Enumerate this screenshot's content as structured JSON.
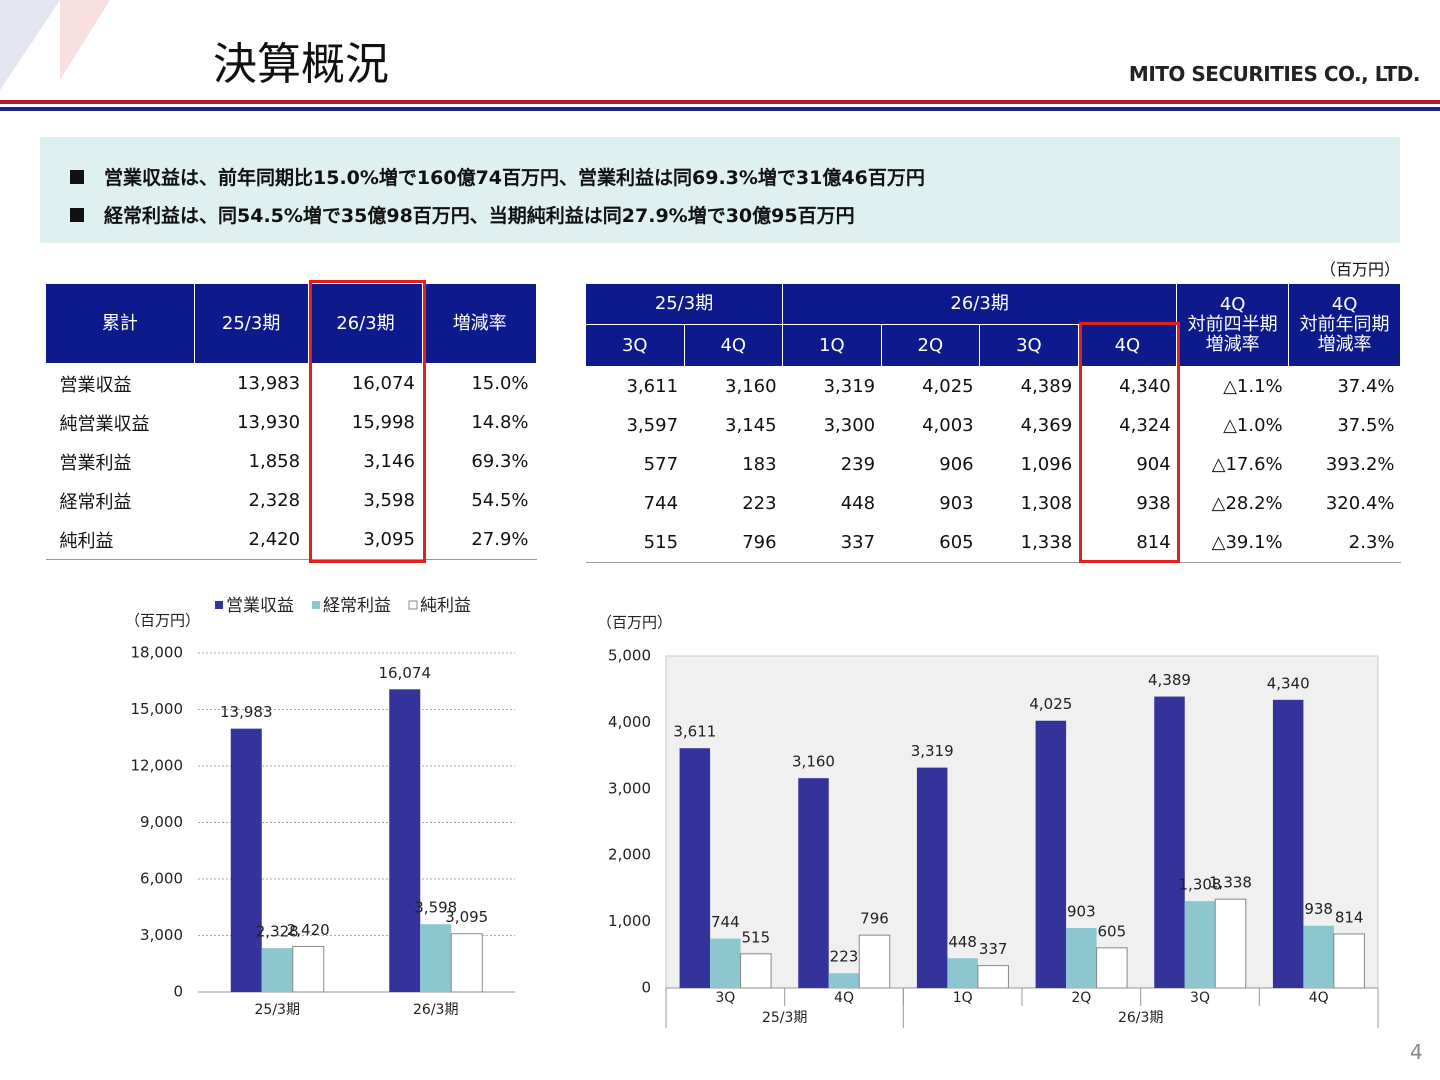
{
  "header": {
    "title": "決算概況",
    "company": "MITO SECURITIES CO., LTD."
  },
  "summary": [
    "営業収益は、前年同期比15.0%増で160億74百万円、営業利益は同69.3%増で31億46百万円",
    "経常利益は、同54.5%増で35億98百万円、当期純利益は同27.9%増で30億95百万円"
  ],
  "unit": "（百万円）",
  "table1": {
    "header": [
      "累計",
      "25/3期",
      "26/3期",
      "増減率"
    ],
    "rows": [
      [
        "営業収益",
        "13,983",
        "16,074",
        "15.0%"
      ],
      [
        "純営業収益",
        "13,930",
        "15,998",
        "14.8%"
      ],
      [
        "営業利益",
        "1,858",
        "3,146",
        "69.3%"
      ],
      [
        "経常利益",
        "2,328",
        "3,598",
        "54.5%"
      ],
      [
        "純利益",
        "2,420",
        "3,095",
        "27.9%"
      ]
    ]
  },
  "table2": {
    "header_top": [
      "25/3期",
      "26/3期",
      "4Q\n対前四半期\n増減率",
      "4Q\n対前年同期\n増減率"
    ],
    "header_sub": [
      "3Q",
      "4Q",
      "1Q",
      "2Q",
      "3Q",
      "4Q"
    ],
    "rows": [
      [
        "3,611",
        "3,160",
        "3,319",
        "4,025",
        "4,389",
        "4,340",
        "△1.1%",
        "37.4%"
      ],
      [
        "3,597",
        "3,145",
        "3,300",
        "4,003",
        "4,369",
        "4,324",
        "△1.0%",
        "37.5%"
      ],
      [
        "577",
        "183",
        "239",
        "906",
        "1,096",
        "904",
        "△17.6%",
        "393.2%"
      ],
      [
        "744",
        "223",
        "448",
        "903",
        "1,308",
        "938",
        "△28.2%",
        "320.4%"
      ],
      [
        "515",
        "796",
        "337",
        "605",
        "1,338",
        "814",
        "△39.1%",
        "2.3%"
      ]
    ]
  },
  "chart_data": [
    {
      "type": "bar",
      "y_label": "（百万円）",
      "categories": [
        "25/3期",
        "26/3期"
      ],
      "legend": "top",
      "grid": true,
      "series": [
        {
          "name": "営業収益",
          "color": "#333399",
          "values": [
            13983,
            16074
          ],
          "value_labels": [
            "13,983",
            "16,074"
          ]
        },
        {
          "name": "経常利益",
          "color": "#8cc6cf",
          "values": [
            2328,
            3598
          ],
          "value_labels": [
            "2,328",
            "3,598"
          ]
        },
        {
          "name": "純利益",
          "color": "#ffffff",
          "values": [
            2420,
            3095
          ],
          "value_labels": [
            "2,420",
            "3,095"
          ]
        }
      ],
      "ylim": [
        0,
        18000
      ],
      "yticks": [
        0,
        {
          "value": 3000,
          "label": "3,000"
        },
        {
          "value": 6000,
          "label": "6,000"
        },
        {
          "value": 9000,
          "label": "9,000"
        },
        {
          "value": 12000,
          "label": "12,000"
        },
        {
          "value": 15000,
          "label": "15,000"
        },
        {
          "value": 18000,
          "label": "18,000"
        }
      ]
    },
    {
      "type": "bar",
      "y_label": "（百万円）",
      "categories": [
        "3Q",
        "4Q",
        "1Q",
        "2Q",
        "3Q",
        "4Q"
      ],
      "category_groups": [
        {
          "label": "25/3期",
          "count": 2
        },
        {
          "label": "26/3期",
          "count": 4
        }
      ],
      "grid": false,
      "series": [
        {
          "color": "#333399",
          "values": [
            3611,
            3160,
            3319,
            4025,
            4389,
            4340
          ],
          "value_labels": [
            "3,611",
            "3,160",
            "3,319",
            "4,025",
            "4,389",
            "4,340"
          ]
        },
        {
          "color": "#8cc6cf",
          "values": [
            744,
            223,
            448,
            903,
            1308,
            938
          ],
          "value_labels": [
            "744",
            "223",
            "448",
            "903",
            "1,308",
            "938"
          ]
        },
        {
          "color": "#ffffff",
          "values": [
            515,
            796,
            337,
            605,
            1338,
            814
          ],
          "value_labels": [
            "515",
            "796",
            "337",
            "605",
            "1,338",
            "814"
          ]
        }
      ],
      "ylim": [
        0,
        5000
      ],
      "yticks": [
        0,
        {
          "value": 1000,
          "label": "1,000"
        },
        {
          "value": 2000,
          "label": "2,000"
        },
        {
          "value": 3000,
          "label": "3,000"
        },
        {
          "value": 4000,
          "label": "4,000"
        },
        {
          "value": 5000,
          "label": "5,000"
        }
      ]
    }
  ],
  "page_number": "4"
}
